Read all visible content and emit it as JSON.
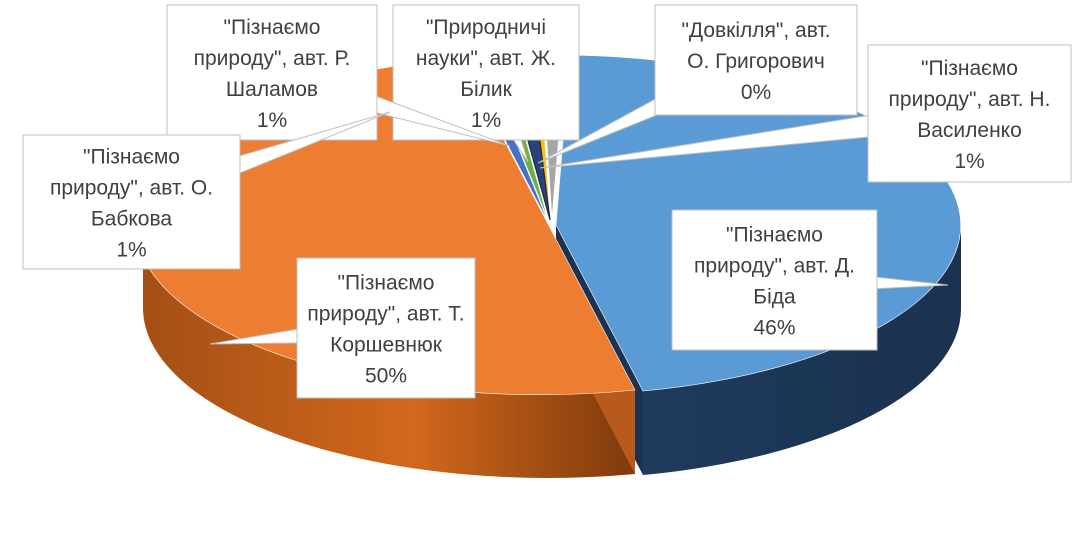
{
  "chart_data": {
    "type": "pie",
    "style": "3d-exploded",
    "legend": "none",
    "slices": [
      {
        "name": "\"Пізнаємо природу\", авт. Т. Коршевнюк",
        "percent_label": "50%",
        "value": 50,
        "color": "#ED7D31",
        "label_lines": [
          "\"Пізнаємо",
          "природу\", авт. Т.",
          "Коршевнюк",
          "50%"
        ]
      },
      {
        "name": "\"Пізнаємо природу\", авт. Д. Біда",
        "percent_label": "46%",
        "value": 46,
        "color": "#5B9BD5",
        "label_lines": [
          "\"Пізнаємо",
          "природу\", авт. Д.",
          "Біда",
          "46%"
        ]
      },
      {
        "name": "\"Пізнаємо природу\", авт. Н. Василенко",
        "percent_label": "1%",
        "value": 1,
        "color": "#A5A5A5",
        "label_lines": [
          "\"Пізнаємо",
          "природу\", авт. Н.",
          "Василенко",
          "1%"
        ]
      },
      {
        "name": "\"Довкілля\", авт. О. Григорович",
        "percent_label": "0%",
        "value": 0.4,
        "color": "#FFC000",
        "label_lines": [
          "\"Довкілля\", авт.",
          "О. Григорович",
          "0%"
        ]
      },
      {
        "name": "\"Природничі науки\", авт. Ж. Білик",
        "percent_label": "1%",
        "value": 1,
        "color": "#264478",
        "label_lines": [
          "\"Природничі",
          "науки\", авт. Ж.",
          "Білик",
          "1%"
        ]
      },
      {
        "name": "\"Пізнаємо природу\", авт. Р. Шаламов",
        "percent_label": "1%",
        "value": 0.8,
        "color": "#70AD47",
        "label_lines": [
          "\"Пізнаємо",
          "природу\", авт. Р.",
          "Шаламов",
          "1%"
        ]
      },
      {
        "name": "\"Пізнаємо природу\", авт. О. Бабкова",
        "percent_label": "1%",
        "value": 0.8,
        "color": "#4472C4",
        "label_lines": [
          "\"Пізнаємо",
          "природу\", авт. О.",
          "Бабкова",
          "1%"
        ]
      }
    ]
  }
}
